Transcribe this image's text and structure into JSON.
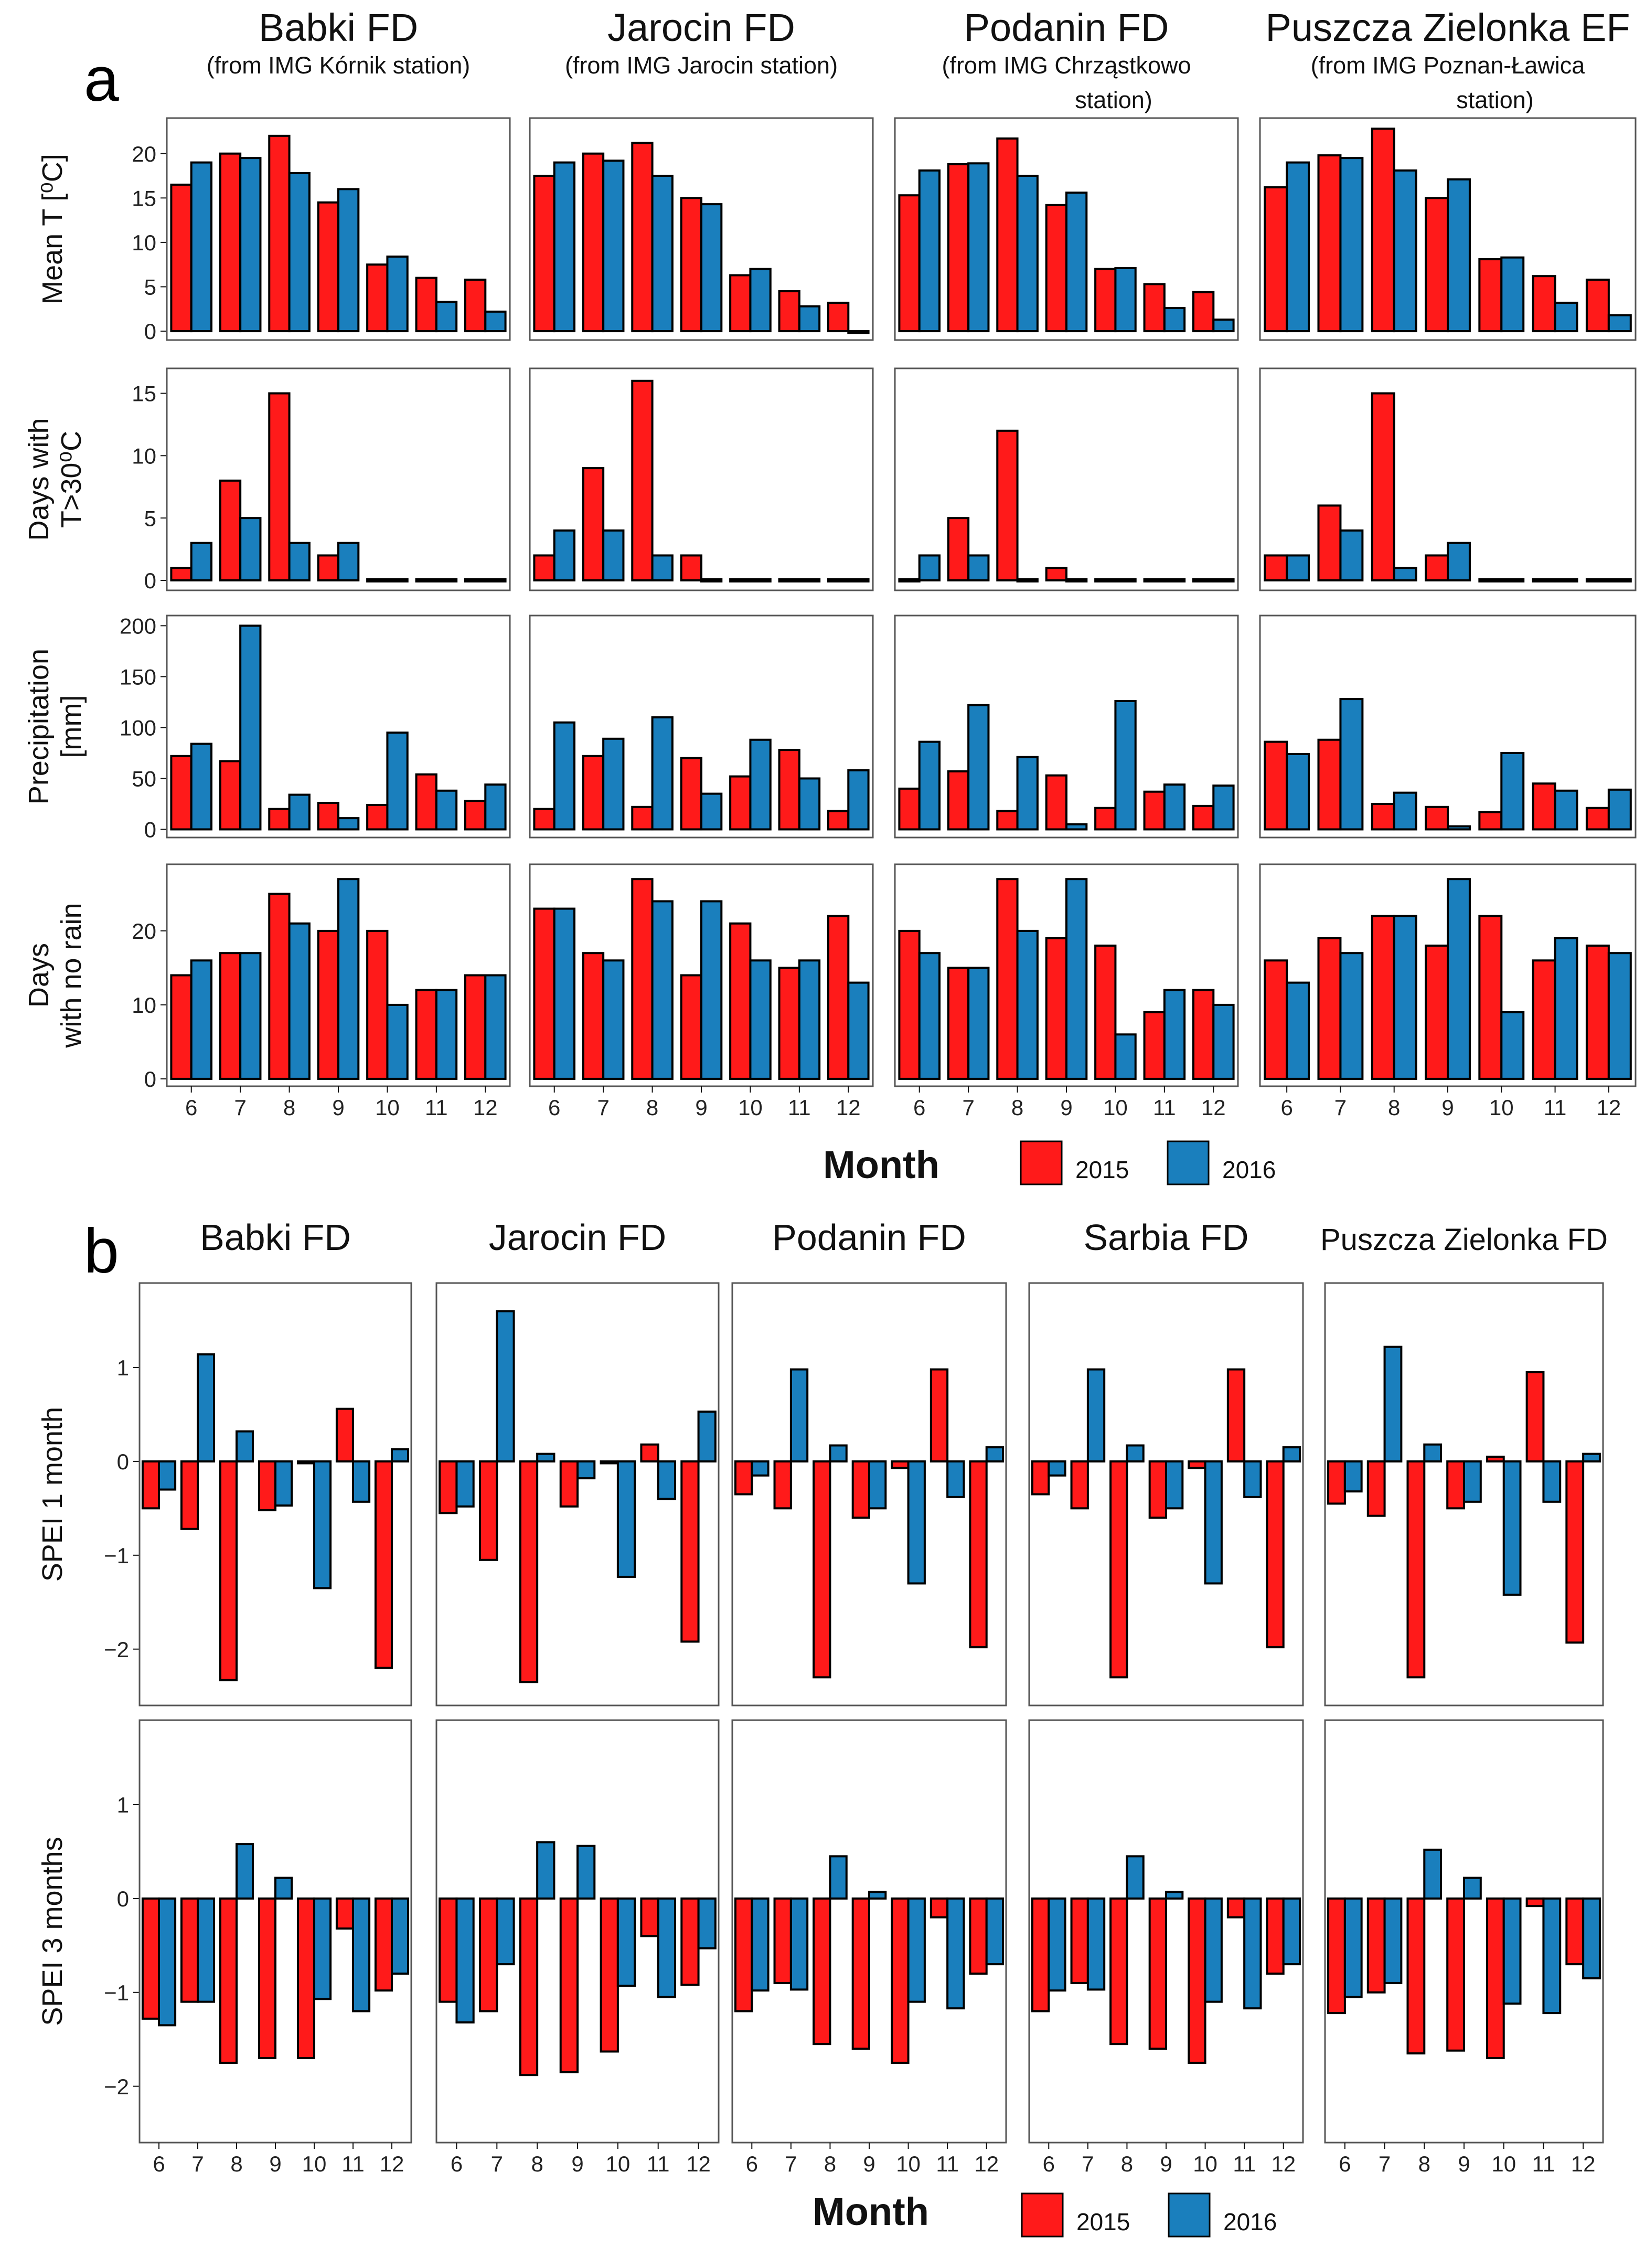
{
  "figure": {
    "colors": {
      "s2015": "#ff1a1a",
      "s2016": "#1a7fbd",
      "frame": "#555555",
      "axis": "#111111"
    }
  },
  "panel_a": {
    "panel_letter": "a",
    "sites": [
      {
        "name": "Babki FD",
        "sub": [
          "(from IMG Kórnik station)"
        ]
      },
      {
        "name": "Jarocin FD",
        "sub": [
          "(from IMG Jarocin station)"
        ]
      },
      {
        "name": "Podanin FD",
        "sub": [
          "(from IMG Chrząstkowo",
          "station)"
        ]
      },
      {
        "name": "Puszcza Zielonka EF",
        "sub": [
          "(from IMG Poznan-Ławica",
          "station)"
        ]
      }
    ],
    "xlabel": "Month",
    "legend": [
      "2015",
      "2016"
    ]
  },
  "panel_b": {
    "panel_letter": "b",
    "sites": [
      "Babki FD",
      "Jarocin FD",
      "Podanin FD",
      "Sarbia FD",
      "Puszcza Zielonka FD"
    ],
    "xlabel": "Month",
    "legend": [
      "2015",
      "2016"
    ]
  },
  "chart_data": [
    {
      "id": "a_mean_t",
      "type": "bar",
      "ylabel": [
        "Mean T [⁰C]"
      ],
      "ylim": [
        -1,
        24
      ],
      "yticks": [
        0,
        5,
        10,
        15,
        20
      ],
      "categories": [
        "6",
        "7",
        "8",
        "9",
        "10",
        "11",
        "12"
      ],
      "facets": [
        {
          "site": "Babki FD",
          "series": [
            {
              "name": "2015",
              "values": [
                16.5,
                20.0,
                22.0,
                14.5,
                7.5,
                6.0,
                5.8
              ]
            },
            {
              "name": "2016",
              "values": [
                19.0,
                19.5,
                17.8,
                16.0,
                8.4,
                3.3,
                2.2
              ]
            }
          ]
        },
        {
          "site": "Jarocin FD",
          "series": [
            {
              "name": "2015",
              "values": [
                17.5,
                20.0,
                21.2,
                15.0,
                6.3,
                4.5,
                3.2
              ]
            },
            {
              "name": "2016",
              "values": [
                19.0,
                19.2,
                17.5,
                14.3,
                7.0,
                2.8,
                -0.2
              ]
            }
          ]
        },
        {
          "site": "Podanin FD",
          "series": [
            {
              "name": "2015",
              "values": [
                15.3,
                18.8,
                21.7,
                14.2,
                7.0,
                5.3,
                4.4
              ]
            },
            {
              "name": "2016",
              "values": [
                18.1,
                18.9,
                17.5,
                15.6,
                7.1,
                2.6,
                1.3
              ]
            }
          ]
        },
        {
          "site": "Puszcza Zielonka EF",
          "series": [
            {
              "name": "2015",
              "values": [
                16.2,
                19.8,
                22.8,
                15.0,
                8.1,
                6.2,
                5.8
              ]
            },
            {
              "name": "2016",
              "values": [
                19.0,
                19.5,
                18.1,
                17.1,
                8.3,
                3.2,
                1.8
              ]
            }
          ]
        }
      ]
    },
    {
      "id": "a_hot_days",
      "type": "bar",
      "ylabel": [
        "Days with",
        "T>30⁰C"
      ],
      "ylim": [
        -0.8,
        17
      ],
      "yticks": [
        0,
        5,
        10,
        15
      ],
      "categories": [
        "6",
        "7",
        "8",
        "9",
        "10",
        "11",
        "12"
      ],
      "facets": [
        {
          "site": "Babki FD",
          "series": [
            {
              "name": "2015",
              "values": [
                1,
                8,
                15,
                2,
                0,
                0,
                0
              ]
            },
            {
              "name": "2016",
              "values": [
                3,
                5,
                3,
                3,
                0,
                0,
                0
              ]
            }
          ]
        },
        {
          "site": "Jarocin FD",
          "series": [
            {
              "name": "2015",
              "values": [
                2,
                9,
                16,
                2,
                0,
                0,
                0
              ]
            },
            {
              "name": "2016",
              "values": [
                4,
                4,
                2,
                0,
                0,
                0,
                0
              ]
            }
          ]
        },
        {
          "site": "Podanin FD",
          "series": [
            {
              "name": "2015",
              "values": [
                0,
                5,
                12,
                1,
                0,
                0,
                0
              ]
            },
            {
              "name": "2016",
              "values": [
                2,
                2,
                0,
                0,
                0,
                0,
                0
              ]
            }
          ]
        },
        {
          "site": "Puszcza Zielonka EF",
          "series": [
            {
              "name": "2015",
              "values": [
                2,
                6,
                15,
                2,
                0,
                0,
                0
              ]
            },
            {
              "name": "2016",
              "values": [
                2,
                4,
                1,
                3,
                0,
                0,
                0
              ]
            }
          ]
        }
      ]
    },
    {
      "id": "a_precip",
      "type": "bar",
      "ylabel": [
        "Precipitation",
        "[mm]"
      ],
      "ylim": [
        -8,
        210
      ],
      "yticks": [
        0,
        50,
        100,
        150,
        200
      ],
      "categories": [
        "6",
        "7",
        "8",
        "9",
        "10",
        "11",
        "12"
      ],
      "facets": [
        {
          "site": "Babki FD",
          "series": [
            {
              "name": "2015",
              "values": [
                72,
                67,
                20,
                26,
                24,
                54,
                28
              ]
            },
            {
              "name": "2016",
              "values": [
                84,
                200,
                34,
                11,
                95,
                38,
                44
              ]
            }
          ]
        },
        {
          "site": "Jarocin FD",
          "series": [
            {
              "name": "2015",
              "values": [
                20,
                72,
                22,
                70,
                52,
                78,
                18
              ]
            },
            {
              "name": "2016",
              "values": [
                105,
                89,
                110,
                35,
                88,
                50,
                58
              ]
            }
          ]
        },
        {
          "site": "Podanin FD",
          "series": [
            {
              "name": "2015",
              "values": [
                40,
                57,
                18,
                53,
                21,
                37,
                23
              ]
            },
            {
              "name": "2016",
              "values": [
                86,
                122,
                71,
                5,
                126,
                44,
                43
              ]
            }
          ]
        },
        {
          "site": "Puszcza Zielonka EF",
          "series": [
            {
              "name": "2015",
              "values": [
                86,
                88,
                25,
                22,
                17,
                45,
                21
              ]
            },
            {
              "name": "2016",
              "values": [
                74,
                128,
                36,
                3,
                75,
                38,
                39
              ]
            }
          ]
        }
      ]
    },
    {
      "id": "a_norain",
      "type": "bar",
      "ylabel": [
        "Days",
        "with no rain"
      ],
      "ylim": [
        -1,
        29
      ],
      "yticks": [
        0,
        10,
        20
      ],
      "categories": [
        "6",
        "7",
        "8",
        "9",
        "10",
        "11",
        "12"
      ],
      "facets": [
        {
          "site": "Babki FD",
          "series": [
            {
              "name": "2015",
              "values": [
                14,
                17,
                25,
                20,
                20,
                12,
                14
              ]
            },
            {
              "name": "2016",
              "values": [
                16,
                17,
                21,
                27,
                10,
                12,
                14
              ]
            }
          ]
        },
        {
          "site": "Jarocin FD",
          "series": [
            {
              "name": "2015",
              "values": [
                23,
                17,
                27,
                14,
                21,
                15,
                22
              ]
            },
            {
              "name": "2016",
              "values": [
                23,
                16,
                24,
                24,
                16,
                16,
                13
              ]
            }
          ]
        },
        {
          "site": "Podanin FD",
          "series": [
            {
              "name": "2015",
              "values": [
                20,
                15,
                27,
                19,
                18,
                9,
                12
              ]
            },
            {
              "name": "2016",
              "values": [
                17,
                15,
                20,
                27,
                6,
                12,
                10
              ]
            }
          ]
        },
        {
          "site": "Puszcza Zielonka EF",
          "series": [
            {
              "name": "2015",
              "values": [
                16,
                19,
                22,
                18,
                22,
                16,
                18
              ]
            },
            {
              "name": "2016",
              "values": [
                13,
                17,
                22,
                27,
                9,
                19,
                17
              ]
            }
          ]
        }
      ]
    },
    {
      "id": "b_spei1",
      "type": "bar",
      "ylabel": [
        "SPEI 1 month"
      ],
      "ylim": [
        -2.6,
        1.9
      ],
      "yticks": [
        -2,
        -1,
        0,
        1
      ],
      "categories": [
        "6",
        "7",
        "8",
        "9",
        "10",
        "11",
        "12"
      ],
      "facets": [
        {
          "site": "Babki FD",
          "series": [
            {
              "name": "2015",
              "values": [
                -0.5,
                -0.72,
                -2.33,
                -0.52,
                -0.02,
                0.56,
                -2.2
              ]
            },
            {
              "name": "2016",
              "values": [
                -0.3,
                1.14,
                0.32,
                -0.47,
                -1.35,
                -0.43,
                0.13
              ]
            }
          ]
        },
        {
          "site": "Jarocin FD",
          "series": [
            {
              "name": "2015",
              "values": [
                -0.55,
                -1.05,
                -2.35,
                -0.48,
                -0.02,
                0.18,
                -1.92
              ]
            },
            {
              "name": "2016",
              "values": [
                -0.48,
                1.6,
                0.08,
                -0.18,
                -1.23,
                -0.4,
                0.53
              ]
            }
          ]
        },
        {
          "site": "Podanin FD",
          "series": [
            {
              "name": "2015",
              "values": [
                -0.35,
                -0.5,
                -2.3,
                -0.6,
                -0.07,
                0.98,
                -1.98
              ]
            },
            {
              "name": "2016",
              "values": [
                -0.15,
                0.98,
                0.17,
                -0.5,
                -1.3,
                -0.38,
                0.15
              ]
            }
          ]
        },
        {
          "site": "Sarbia FD",
          "series": [
            {
              "name": "2015",
              "values": [
                -0.35,
                -0.5,
                -2.3,
                -0.6,
                -0.07,
                0.98,
                -1.98
              ]
            },
            {
              "name": "2016",
              "values": [
                -0.15,
                0.98,
                0.17,
                -0.5,
                -1.3,
                -0.38,
                0.15
              ]
            }
          ]
        },
        {
          "site": "Puszcza Zielonka FD",
          "series": [
            {
              "name": "2015",
              "values": [
                -0.45,
                -0.58,
                -2.3,
                -0.5,
                0.05,
                0.95,
                -1.93
              ]
            },
            {
              "name": "2016",
              "values": [
                -0.32,
                1.22,
                0.18,
                -0.43,
                -1.42,
                -0.43,
                0.08
              ]
            }
          ]
        }
      ]
    },
    {
      "id": "b_spei3",
      "type": "bar",
      "ylabel": [
        "SPEI 3 months"
      ],
      "ylim": [
        -2.6,
        1.9
      ],
      "yticks": [
        -2,
        -1,
        0,
        1
      ],
      "categories": [
        "6",
        "7",
        "8",
        "9",
        "10",
        "11",
        "12"
      ],
      "facets": [
        {
          "site": "Babki FD",
          "series": [
            {
              "name": "2015",
              "values": [
                -1.28,
                -1.1,
                -1.75,
                -1.7,
                -1.7,
                -0.32,
                -0.98
              ]
            },
            {
              "name": "2016",
              "values": [
                -1.35,
                -1.1,
                0.58,
                0.22,
                -1.07,
                -1.2,
                -0.8
              ]
            }
          ]
        },
        {
          "site": "Jarocin FD",
          "series": [
            {
              "name": "2015",
              "values": [
                -1.1,
                -1.2,
                -1.88,
                -1.85,
                -1.63,
                -0.4,
                -0.92
              ]
            },
            {
              "name": "2016",
              "values": [
                -1.32,
                -0.7,
                0.6,
                0.56,
                -0.93,
                -1.05,
                -0.53
              ]
            }
          ]
        },
        {
          "site": "Podanin FD",
          "series": [
            {
              "name": "2015",
              "values": [
                -1.2,
                -0.9,
                -1.55,
                -1.6,
                -1.75,
                -0.2,
                -0.8
              ]
            },
            {
              "name": "2016",
              "values": [
                -0.98,
                -0.97,
                0.45,
                0.07,
                -1.1,
                -1.17,
                -0.7
              ]
            }
          ]
        },
        {
          "site": "Sarbia FD",
          "series": [
            {
              "name": "2015",
              "values": [
                -1.2,
                -0.9,
                -1.55,
                -1.6,
                -1.75,
                -0.2,
                -0.8
              ]
            },
            {
              "name": "2016",
              "values": [
                -0.98,
                -0.97,
                0.45,
                0.07,
                -1.1,
                -1.17,
                -0.7
              ]
            }
          ]
        },
        {
          "site": "Puszcza Zielonka FD",
          "series": [
            {
              "name": "2015",
              "values": [
                -1.22,
                -1.0,
                -1.65,
                -1.62,
                -1.7,
                -0.08,
                -0.7
              ]
            },
            {
              "name": "2016",
              "values": [
                -1.05,
                -0.9,
                0.52,
                0.22,
                -1.12,
                -1.22,
                -0.85
              ]
            }
          ]
        }
      ]
    }
  ]
}
